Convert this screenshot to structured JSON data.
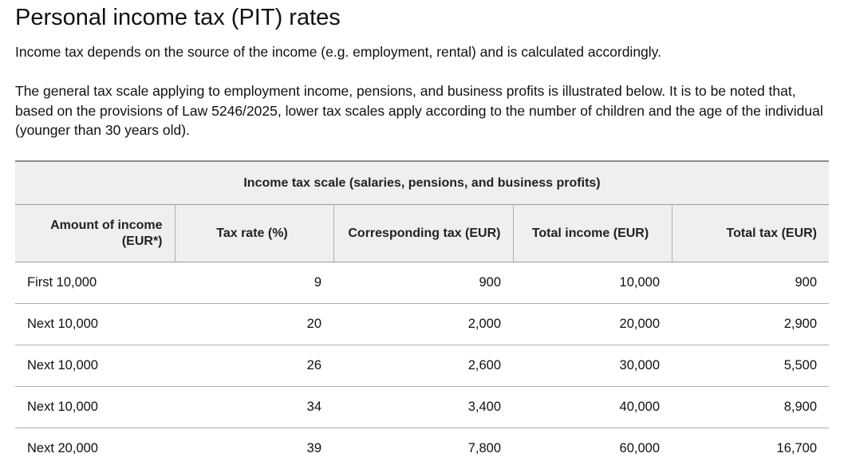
{
  "title": "Personal income tax (PIT) rates",
  "intro": "Income tax depends on the source of the income (e.g. employment, rental) and is calculated accordingly.",
  "general_scale": "The general tax scale applying to employment income, pensions, and business profits is illustrated below. It is to be noted that, based on the provisions of Law 5246/2025, lower tax scales apply according to the number of children and the age of the individual (younger than 30 years old).",
  "table": {
    "caption": "Income tax scale (salaries, pensions, and business profits)",
    "headers": [
      "Amount of income (EUR*)",
      "Tax rate (%)",
      "Corresponding tax (EUR)",
      "Total income (EUR)",
      "Total tax (EUR)"
    ],
    "rows": [
      [
        "First 10,000",
        "9",
        "900",
        "10,000",
        "900"
      ],
      [
        "Next 10,000",
        "20",
        "2,000",
        "20,000",
        "2,900"
      ],
      [
        "Next 10,000",
        "26",
        "2,600",
        "30,000",
        "5,500"
      ],
      [
        "Next 10,000",
        "34",
        "3,400",
        "40,000",
        "8,900"
      ],
      [
        "Next 20,000",
        "39",
        "7,800",
        "60,000",
        "16,700"
      ]
    ]
  }
}
